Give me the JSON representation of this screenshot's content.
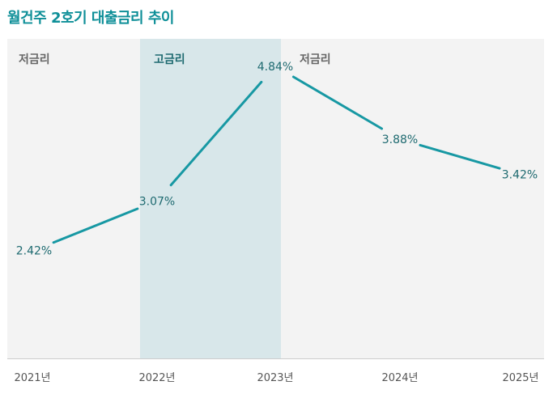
{
  "title": "월건주 2호기 대출금리 추이",
  "colors": {
    "title": "#0e8f98",
    "line": "#1798a3",
    "value_label": "#1e6a70",
    "bg_low": "#f3f3f3",
    "bg_high": "#d8e7ea",
    "label_low": "#666666",
    "label_high": "#1e6a70",
    "baseline": "#cccccc"
  },
  "chart_data": {
    "type": "line",
    "title": "월건주 2호기 대출금리 추이",
    "categories": [
      "2021년",
      "2022년",
      "2023년",
      "2024년",
      "2025년"
    ],
    "values": [
      2.42,
      3.07,
      4.84,
      3.88,
      3.42
    ],
    "value_labels": [
      "2.42%",
      "3.07%",
      "4.84%",
      "3.88%",
      "3.42%"
    ],
    "unit": "%",
    "ylim": [
      1.0,
      5.2
    ],
    "regions": [
      {
        "label": "저금리",
        "kind": "low"
      },
      {
        "label": "고금리",
        "kind": "high"
      },
      {
        "label": "저금리",
        "kind": "low"
      }
    ],
    "xlabel": "",
    "ylabel": "",
    "grid": false,
    "legend": "none"
  }
}
